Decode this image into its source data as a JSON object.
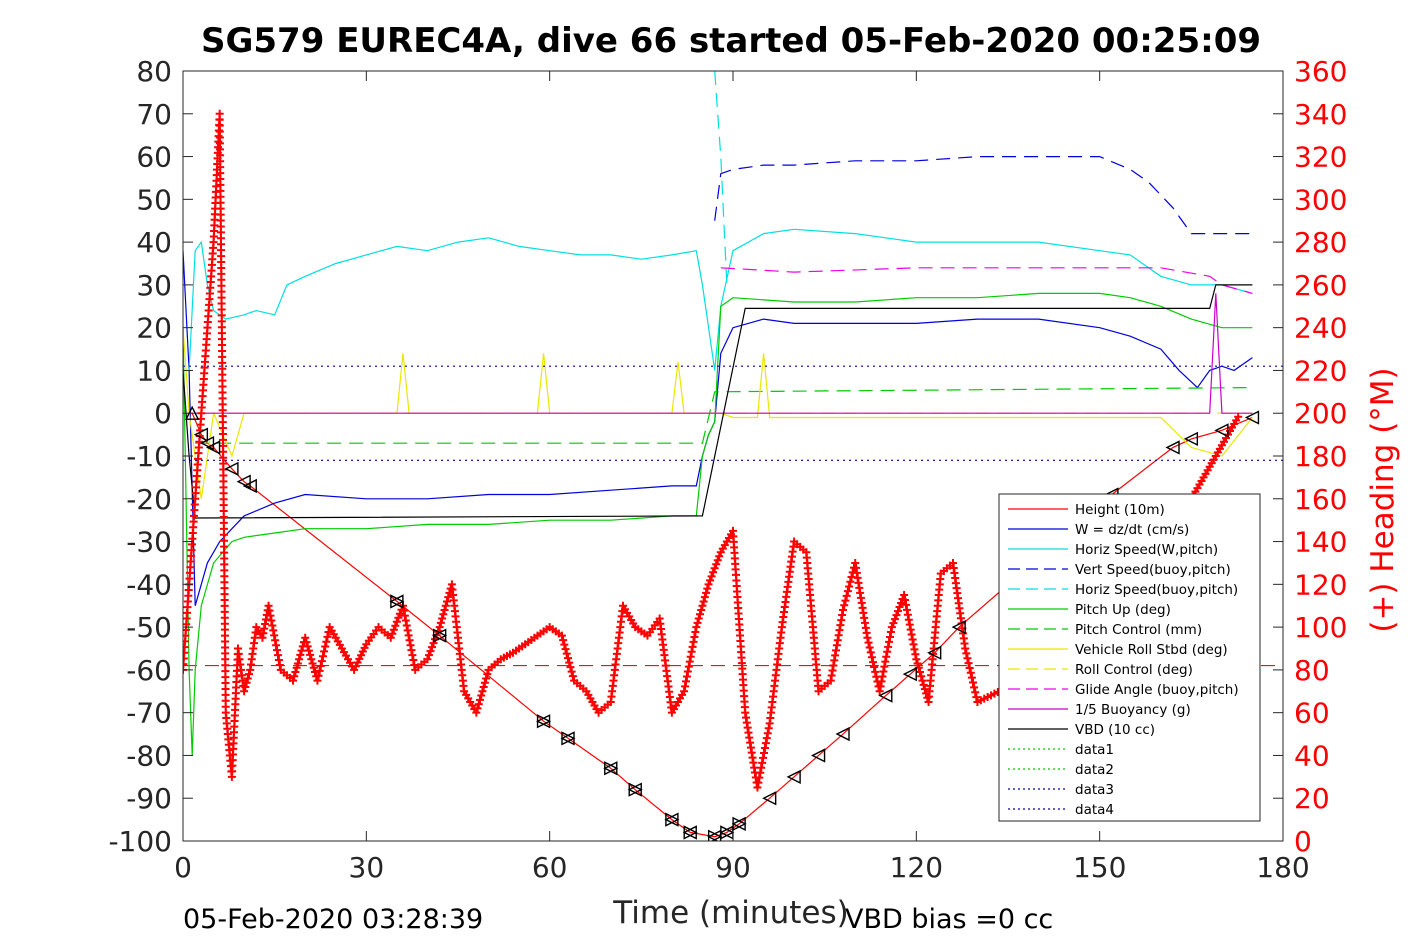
{
  "chart_data": {
    "type": "line",
    "title": "SG579 EUREC4A, dive 66 started 05-Feb-2020 00:25:09",
    "xlabel": "Time (minutes)",
    "ylabel_right": "(+) Heading (°M)",
    "xlim": [
      0,
      180
    ],
    "ylim": [
      -100,
      80
    ],
    "ylim_right": [
      0,
      360
    ],
    "x_ticks": [
      "0",
      "30",
      "60",
      "90",
      "120",
      "150",
      "180"
    ],
    "y_ticks": [
      "80",
      "70",
      "60",
      "50",
      "40",
      "30",
      "20",
      "10",
      "0",
      "-10",
      "-20",
      "-30",
      "-40",
      "-50",
      "-60",
      "-70",
      "-80",
      "-90",
      "-100"
    ],
    "y_right_ticks": [
      "360",
      "340",
      "320",
      "300",
      "280",
      "260",
      "240",
      "220",
      "200",
      "180",
      "160",
      "140",
      "120",
      "100",
      "80",
      "60",
      "40",
      "20",
      "0"
    ],
    "footer_left": "05-Feb-2020 03:28:39",
    "footer_right": "VBD bias =0 cc",
    "grid": false,
    "legend_position": "bottom-right",
    "series": [
      {
        "name": "Height (10m)",
        "color": "#ff0000",
        "style": "solid",
        "x": [
          1.5,
          3,
          4,
          5,
          8,
          10,
          11,
          35,
          42,
          59,
          63,
          70,
          74,
          80,
          83,
          87,
          89,
          91,
          96,
          100,
          104,
          108,
          115,
          119,
          123,
          127,
          152,
          162,
          165,
          170,
          175
        ],
        "y": [
          0,
          -5,
          -7,
          -8,
          -13,
          -16,
          -17,
          -44,
          -52,
          -72,
          -76,
          -83,
          -88,
          -95,
          -98,
          -99,
          -98,
          -96,
          -90,
          -85,
          -80,
          -75,
          -66,
          -61,
          -56,
          -50,
          -19,
          -8,
          -6,
          -4,
          -1
        ]
      },
      {
        "name": "W = dz/dt (cm/s)",
        "color": "#0000dd",
        "style": "solid",
        "x": [
          0,
          1,
          2,
          3,
          4,
          6,
          8,
          10,
          15,
          20,
          30,
          40,
          50,
          60,
          70,
          80,
          84,
          85,
          86,
          87,
          88,
          90,
          95,
          100,
          110,
          120,
          130,
          140,
          150,
          155,
          160,
          163,
          166,
          168,
          170,
          172,
          174,
          175
        ],
        "y": [
          38,
          10,
          -45,
          -40,
          -35,
          -30,
          -27,
          -24,
          -21,
          -19,
          -20,
          -20,
          -19,
          -19,
          -18,
          -17,
          -17,
          -10,
          -5,
          -2,
          14,
          20,
          22,
          21,
          21,
          21,
          22,
          22,
          20,
          18,
          15,
          10,
          6,
          10,
          11,
          10,
          12,
          13
        ]
      },
      {
        "name": "Horiz Speed(W,pitch)",
        "color": "#00e0e0",
        "style": "solid",
        "x": [
          1,
          2,
          3,
          4,
          5,
          7,
          10,
          12,
          15,
          17,
          20,
          25,
          30,
          35,
          40,
          45,
          50,
          55,
          60,
          65,
          70,
          75,
          80,
          84,
          85,
          86,
          87,
          88,
          90,
          95,
          100,
          110,
          120,
          130,
          140,
          150,
          155,
          160,
          165,
          170,
          175
        ],
        "y": [
          10,
          38,
          40,
          30,
          24,
          22,
          23,
          24,
          23,
          30,
          32,
          35,
          37,
          39,
          38,
          40,
          41,
          39,
          38,
          37,
          37,
          36,
          37,
          38,
          30,
          20,
          10,
          25,
          38,
          42,
          43,
          42,
          40,
          40,
          40,
          38,
          37,
          32,
          30,
          30,
          28
        ]
      },
      {
        "name": "Vert Speed(buoy,pitch)",
        "color": "#0000dd",
        "style": "dashed",
        "x": [
          87,
          88,
          90,
          95,
          100,
          110,
          120,
          130,
          140,
          150,
          155,
          158,
          162,
          165,
          170,
          175
        ],
        "y": [
          45,
          56,
          57,
          58,
          58,
          59,
          59,
          60,
          60,
          60,
          57,
          54,
          48,
          42,
          42,
          42
        ]
      },
      {
        "name": "Horiz Speed(buoy,pitch)",
        "color": "#00e0e0",
        "style": "dashed",
        "x": [
          87,
          88,
          88.5,
          89
        ],
        "y": [
          80,
          60,
          45,
          30
        ]
      },
      {
        "name": "Pitch Up (deg)",
        "color": "#00cc00",
        "style": "solid",
        "x": [
          0,
          1,
          1.5,
          2,
          3,
          5,
          8,
          10,
          15,
          20,
          30,
          40,
          50,
          60,
          70,
          80,
          84,
          85,
          86,
          87,
          88,
          90,
          100,
          110,
          120,
          130,
          140,
          150,
          155,
          160,
          165,
          170,
          175
        ],
        "y": [
          20,
          -60,
          -80,
          -60,
          -45,
          -35,
          -30,
          -29,
          -28,
          -27,
          -27,
          -26,
          -26,
          -25,
          -25,
          -24,
          -24,
          -10,
          -5,
          -2,
          25,
          27,
          26,
          26,
          27,
          27,
          28,
          28,
          27,
          25,
          22,
          20,
          20
        ]
      },
      {
        "name": "Pitch Control (mm)",
        "color": "#00cc00",
        "style": "dashed",
        "x": [
          2,
          85,
          87,
          175
        ],
        "y": [
          -7,
          -7,
          5,
          6
        ]
      },
      {
        "name": "Vehicle Roll Stbd (deg)",
        "color": "#e8e800",
        "style": "solid",
        "x": [
          0,
          1,
          3,
          5,
          8,
          10,
          20,
          35,
          36,
          37,
          45,
          58,
          59,
          60,
          70,
          80,
          81,
          82,
          84,
          86,
          88,
          90,
          94,
          95,
          96,
          100,
          110,
          120,
          130,
          140,
          150,
          160,
          165,
          170,
          175
        ],
        "y": [
          20,
          0,
          -20,
          0,
          -10,
          0,
          0,
          0,
          14,
          0,
          0,
          0,
          14,
          0,
          0,
          0,
          12,
          0,
          0,
          0,
          0,
          -1,
          -1,
          14,
          -1,
          -1,
          -1,
          -1,
          -1,
          -1,
          -1,
          -1,
          -8,
          -10,
          -1
        ]
      },
      {
        "name": "Roll Control (deg)",
        "color": "#e8e800",
        "style": "dashed",
        "x": [
          0,
          175
        ],
        "y": [
          0,
          0
        ]
      },
      {
        "name": "Glide Angle (buoy,pitch)",
        "color": "#ee00ee",
        "style": "dashed",
        "x": [
          88,
          100,
          120,
          140,
          160,
          168,
          170,
          175
        ],
        "y": [
          34,
          33,
          34,
          34,
          34,
          32,
          30,
          28
        ]
      },
      {
        "name": "1/5 Buoyancy (g)",
        "color": "#cc00cc",
        "style": "solid",
        "x": [
          1,
          86,
          168,
          169,
          170,
          175
        ],
        "y": [
          0,
          0,
          0,
          28,
          0,
          0
        ]
      },
      {
        "name": "VBD (10 cc)",
        "color": "#000000",
        "style": "solid",
        "x": [
          0,
          1,
          2,
          85,
          92,
          168,
          169,
          175
        ],
        "y": [
          10,
          -10,
          -24.5,
          -24,
          24.5,
          24.5,
          30,
          30
        ]
      },
      {
        "name": "data1",
        "color": "#00cc00",
        "style": "dotted",
        "x": [],
        "y": []
      },
      {
        "name": "data2",
        "color": "#00cc00",
        "style": "dotted",
        "x": [],
        "y": []
      },
      {
        "name": "data3",
        "color": "#0000aa",
        "style": "dotted",
        "x": [
          0,
          180
        ],
        "y": [
          11,
          11
        ]
      },
      {
        "name": "data4",
        "color": "#0000aa",
        "style": "dotted",
        "x": [
          0,
          180
        ],
        "y": [
          -11,
          -11
        ]
      }
    ],
    "reference_lines": [
      {
        "color": "#cc0000",
        "style": "dashed",
        "axis": "y",
        "value": -59
      }
    ],
    "heading_series": {
      "axis": "right",
      "color": "#ff0000",
      "marker": "+",
      "x": [
        0,
        1,
        2,
        3,
        4,
        5,
        6,
        7,
        8,
        9,
        10,
        11,
        12,
        13,
        14,
        16,
        18,
        20,
        22,
        24,
        26,
        28,
        30,
        32,
        34,
        36,
        38,
        40,
        42,
        44,
        46,
        48,
        50,
        52,
        54,
        56,
        58,
        60,
        62,
        64,
        66,
        68,
        70,
        72,
        74,
        76,
        78,
        80,
        82,
        84,
        86,
        88,
        90,
        92,
        94,
        96,
        98,
        100,
        102,
        104,
        106,
        108,
        110,
        112,
        114,
        116,
        118,
        120,
        122,
        124,
        126,
        128,
        130,
        135,
        140,
        145,
        150,
        155,
        160,
        165,
        170,
        173
      ],
      "y": [
        80,
        120,
        160,
        200,
        240,
        280,
        340,
        60,
        30,
        90,
        70,
        80,
        100,
        95,
        110,
        80,
        75,
        95,
        75,
        100,
        90,
        80,
        92,
        100,
        95,
        110,
        80,
        85,
        100,
        120,
        70,
        60,
        80,
        85,
        88,
        92,
        96,
        100,
        96,
        75,
        70,
        60,
        65,
        110,
        100,
        96,
        104,
        60,
        70,
        100,
        120,
        135,
        145,
        60,
        25,
        55,
        100,
        140,
        135,
        70,
        75,
        108,
        130,
        95,
        70,
        100,
        115,
        85,
        65,
        125,
        130,
        90,
        65,
        72,
        80,
        90,
        110,
        130,
        145,
        160,
        185,
        200
      ]
    },
    "markers": [
      {
        "x": 1.5,
        "y": 0,
        "shape": "up"
      },
      {
        "x": 3,
        "y": -5,
        "shape": "left"
      },
      {
        "x": 4,
        "y": -7,
        "shape": "left"
      },
      {
        "x": 5,
        "y": -8,
        "shape": "left"
      },
      {
        "x": 8,
        "y": -13,
        "shape": "left"
      },
      {
        "x": 10,
        "y": -16,
        "shape": "left"
      },
      {
        "x": 11,
        "y": -17,
        "shape": "left"
      },
      {
        "x": 35,
        "y": -44,
        "shape": "bow"
      },
      {
        "x": 42,
        "y": -52,
        "shape": "bow"
      },
      {
        "x": 59,
        "y": -72,
        "shape": "bow"
      },
      {
        "x": 63,
        "y": -76,
        "shape": "bow"
      },
      {
        "x": 70,
        "y": -83,
        "shape": "bow"
      },
      {
        "x": 74,
        "y": -88,
        "shape": "bow"
      },
      {
        "x": 80,
        "y": -95,
        "shape": "bow"
      },
      {
        "x": 83,
        "y": -98,
        "shape": "bow"
      },
      {
        "x": 87,
        "y": -99,
        "shape": "bow"
      },
      {
        "x": 89,
        "y": -98,
        "shape": "bow"
      },
      {
        "x": 91,
        "y": -96,
        "shape": "bow"
      },
      {
        "x": 96,
        "y": -90,
        "shape": "left"
      },
      {
        "x": 100,
        "y": -85,
        "shape": "left"
      },
      {
        "x": 104,
        "y": -80,
        "shape": "left"
      },
      {
        "x": 108,
        "y": -75,
        "shape": "left"
      },
      {
        "x": 115,
        "y": -66,
        "shape": "left"
      },
      {
        "x": 119,
        "y": -61,
        "shape": "left"
      },
      {
        "x": 123,
        "y": -56,
        "shape": "left"
      },
      {
        "x": 127,
        "y": -50,
        "shape": "left"
      },
      {
        "x": 152,
        "y": -19,
        "shape": "left"
      },
      {
        "x": 162,
        "y": -8,
        "shape": "left"
      },
      {
        "x": 165,
        "y": -6,
        "shape": "left"
      },
      {
        "x": 170,
        "y": -4,
        "shape": "left"
      },
      {
        "x": 175,
        "y": -1,
        "shape": "left"
      }
    ]
  }
}
